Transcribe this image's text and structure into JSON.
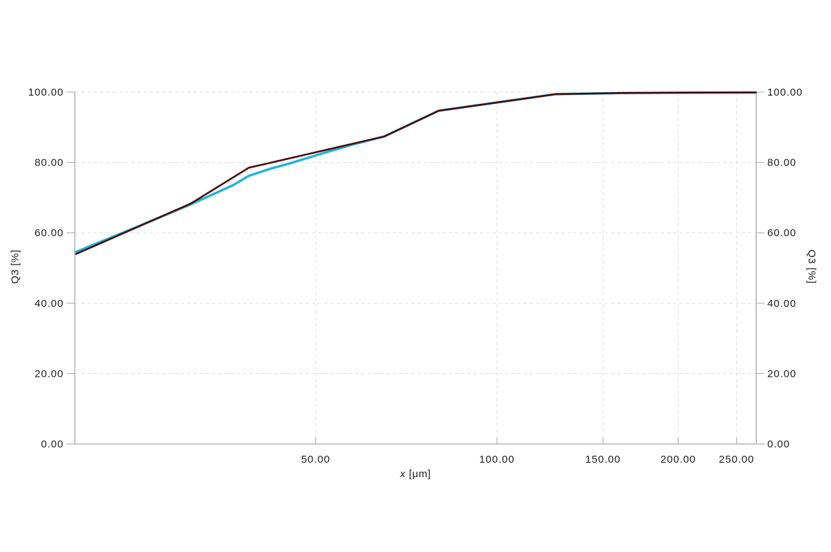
{
  "chart_data": {
    "type": "line",
    "title": "",
    "xlabel_var": "x",
    "xlabel_unit": "[μm]",
    "ylabel_left": "Q3 [%]",
    "ylabel_right": "Q3 [%]",
    "x_scale": "log",
    "x_range": [
      19.9,
      269.5
    ],
    "y_range": [
      0,
      100
    ],
    "x_ticks": [
      50,
      100,
      150,
      200,
      250
    ],
    "x_tick_labels": [
      "50.00",
      "100.00",
      "150.00",
      "200.00",
      "250.00"
    ],
    "y_ticks": [
      0,
      20,
      40,
      60,
      80,
      100
    ],
    "y_tick_labels": [
      "0.00",
      "20.00",
      "40.00",
      "60.00",
      "80.00",
      "100.00"
    ],
    "grid": true,
    "legend_position": "none",
    "series": [
      {
        "name": "distribution-cyan",
        "color": "#1db4d9",
        "points": [
          [
            20,
            54.6
          ],
          [
            25,
            61.4
          ],
          [
            31,
            68.1
          ],
          [
            34,
            71.2
          ],
          [
            36.5,
            73.6
          ],
          [
            38.7,
            76.2
          ],
          [
            42,
            78.2
          ],
          [
            45,
            79.6
          ],
          [
            50,
            82.0
          ],
          [
            57,
            84.9
          ],
          [
            61,
            86.2
          ],
          [
            65,
            87.4
          ],
          [
            80,
            94.7
          ],
          [
            125,
            99.4
          ],
          [
            160,
            99.75
          ],
          [
            200,
            99.85
          ],
          [
            269,
            99.9
          ]
        ]
      },
      {
        "name": "distribution-darkred",
        "color": "#4a0b0b",
        "points": [
          [
            20,
            54.0
          ],
          [
            31,
            68.3
          ],
          [
            38.7,
            78.5
          ],
          [
            65,
            87.4
          ],
          [
            80,
            94.7
          ],
          [
            125,
            99.4
          ],
          [
            160,
            99.75
          ],
          [
            200,
            99.85
          ],
          [
            269,
            99.9
          ]
        ]
      }
    ]
  },
  "style_colors": {
    "axis": "#b2b2b2",
    "tick": "#b2b2b2",
    "grid": "#e4e4e4",
    "label": "#1c1c1c",
    "background": "#ffffff"
  }
}
